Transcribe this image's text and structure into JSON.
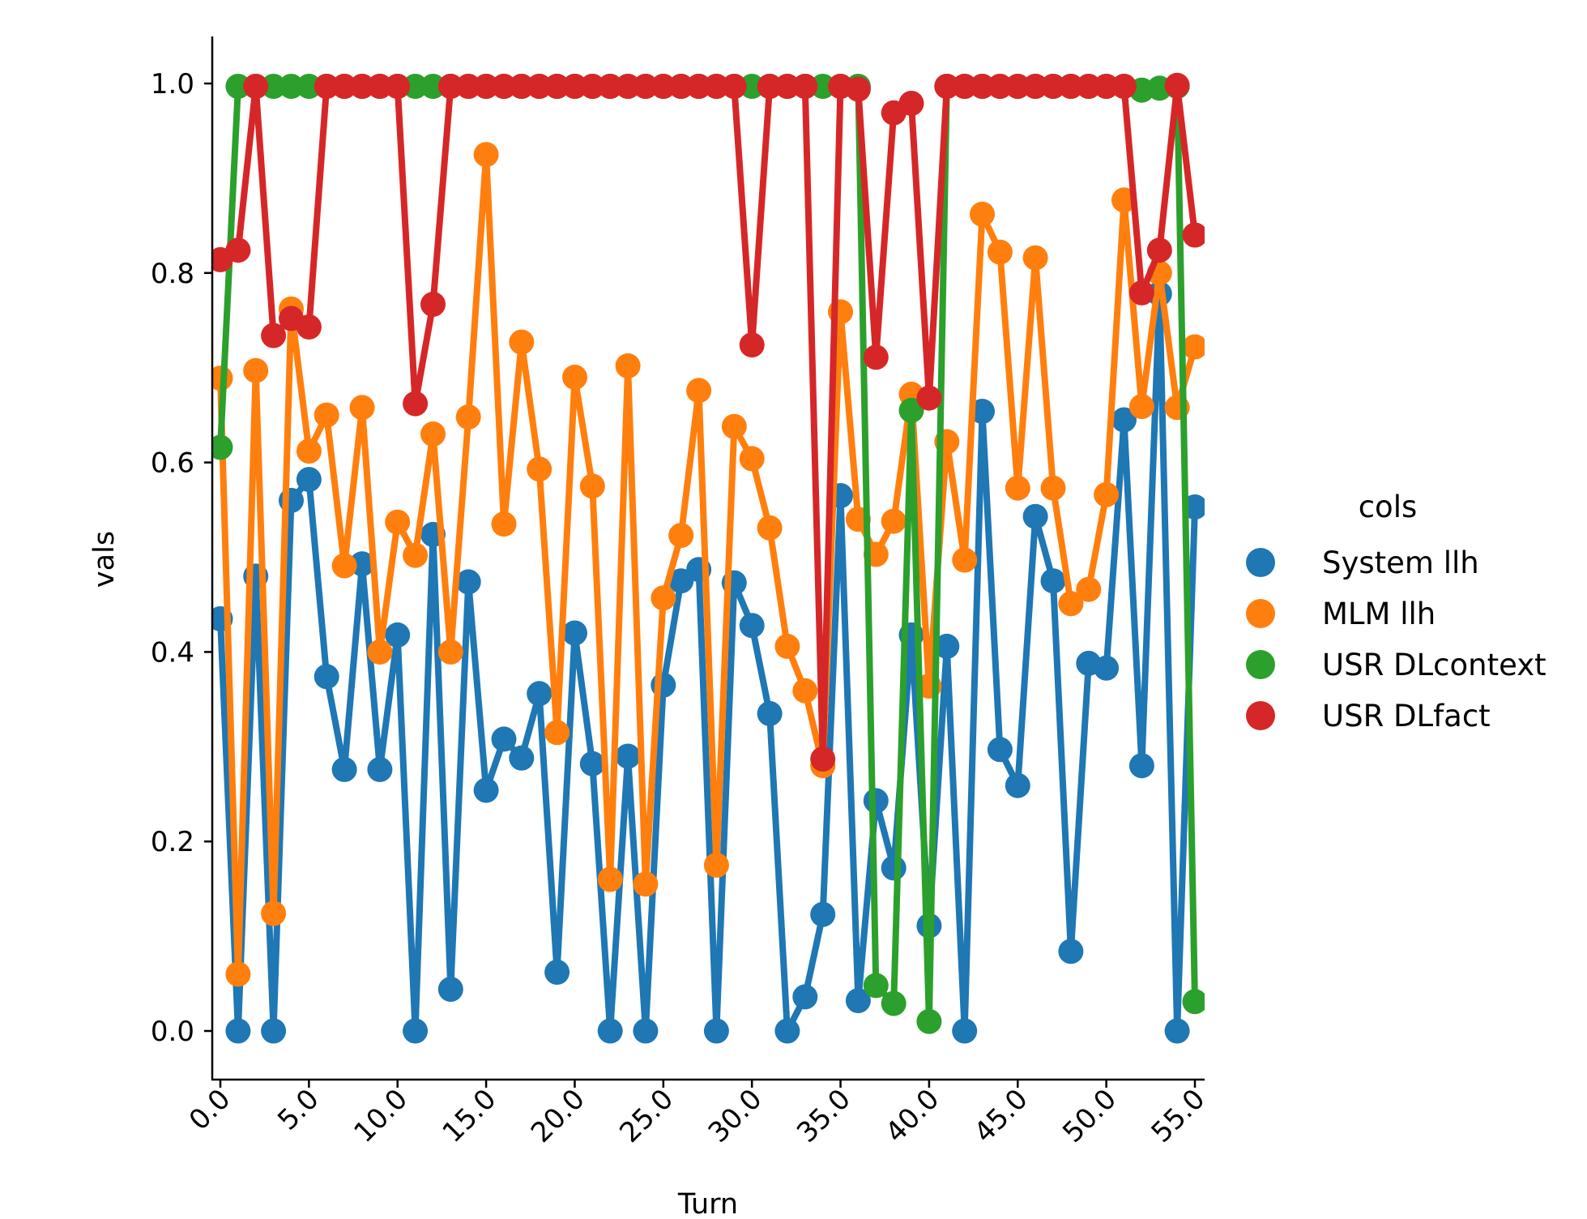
{
  "chart_data": {
    "type": "line",
    "xlabel": "Turn",
    "ylabel": "vals",
    "xlim": [
      -0.5,
      55.3
    ],
    "ylim": [
      -0.05,
      1.05
    ],
    "x_ticks": [
      0,
      5,
      10,
      15,
      20,
      25,
      30,
      35,
      40,
      45,
      50,
      55
    ],
    "x_tick_labels": [
      "0.0",
      "5.0",
      "10.0",
      "15.0",
      "20.0",
      "25.0",
      "30.0",
      "35.0",
      "40.0",
      "45.0",
      "50.0",
      "55.0"
    ],
    "y_ticks": [
      0.0,
      0.2,
      0.4,
      0.6,
      0.8,
      1.0
    ],
    "y_tick_labels": [
      "0.0",
      "0.2",
      "0.4",
      "0.6",
      "0.8",
      "1.0"
    ],
    "grid": false,
    "legend": {
      "title": "cols",
      "placement": "right"
    },
    "x": [
      0,
      1,
      2,
      3,
      4,
      5,
      6,
      7,
      8,
      9,
      10,
      11,
      12,
      13,
      14,
      15,
      16,
      17,
      18,
      19,
      20,
      21,
      22,
      23,
      24,
      25,
      26,
      27,
      28,
      29,
      30,
      31,
      32,
      33,
      34,
      35,
      36,
      37,
      38,
      39,
      40,
      41,
      42,
      43,
      44,
      45,
      46,
      47,
      48,
      49,
      50,
      51,
      52,
      53,
      54,
      55
    ],
    "series": [
      {
        "name": "System llh",
        "color": "#1f77b4",
        "values": [
          0.435,
          0.0,
          0.48,
          0.0,
          0.56,
          0.582,
          0.374,
          0.276,
          0.493,
          0.276,
          0.418,
          0.0,
          0.524,
          0.044,
          0.474,
          0.254,
          0.308,
          0.288,
          0.356,
          0.062,
          0.42,
          0.282,
          0.0,
          0.29,
          0.0,
          0.365,
          0.475,
          0.487,
          0.0,
          0.473,
          0.428,
          0.335,
          0.0,
          0.036,
          0.123,
          0.565,
          0.032,
          0.243,
          0.172,
          0.418,
          0.111,
          0.406,
          0.0,
          0.654,
          0.297,
          0.259,
          0.543,
          0.475,
          0.084,
          0.388,
          0.383,
          0.645,
          0.28,
          0.778,
          0.0,
          0.553
        ]
      },
      {
        "name": "MLM llh",
        "color": "#ff7f0e",
        "values": [
          0.689,
          0.06,
          0.697,
          0.124,
          0.762,
          0.612,
          0.65,
          0.491,
          0.658,
          0.4,
          0.537,
          0.502,
          0.63,
          0.4,
          0.648,
          0.925,
          0.535,
          0.727,
          0.593,
          0.315,
          0.69,
          0.575,
          0.16,
          0.702,
          0.155,
          0.457,
          0.523,
          0.676,
          0.175,
          0.638,
          0.604,
          0.531,
          0.406,
          0.359,
          0.28,
          0.759,
          0.54,
          0.503,
          0.538,
          0.672,
          0.364,
          0.622,
          0.497,
          0.862,
          0.822,
          0.573,
          0.816,
          0.573,
          0.451,
          0.466,
          0.566,
          0.877,
          0.659,
          0.8,
          0.658,
          0.722
        ]
      },
      {
        "name": "USR DLcontext",
        "color": "#2ca02c",
        "values": [
          0.616,
          0.997,
          0.997,
          0.997,
          0.997,
          0.997,
          0.997,
          0.997,
          0.997,
          0.997,
          0.997,
          0.997,
          0.997,
          0.997,
          0.997,
          0.997,
          0.997,
          0.997,
          0.997,
          0.997,
          0.997,
          0.997,
          0.997,
          0.997,
          0.997,
          0.997,
          0.997,
          0.997,
          0.997,
          0.997,
          0.997,
          0.997,
          0.997,
          0.997,
          0.997,
          0.997,
          0.997,
          0.048,
          0.029,
          0.655,
          0.01,
          0.997,
          0.997,
          0.997,
          0.997,
          0.997,
          0.997,
          0.997,
          0.997,
          0.997,
          0.997,
          0.997,
          0.993,
          0.995,
          0.997,
          0.031
        ]
      },
      {
        "name": "USR DLfact",
        "color": "#d62728",
        "values": [
          0.814,
          0.824,
          0.997,
          0.734,
          0.752,
          0.743,
          0.997,
          0.997,
          0.997,
          0.997,
          0.997,
          0.662,
          0.767,
          0.997,
          0.997,
          0.997,
          0.997,
          0.997,
          0.997,
          0.997,
          0.997,
          0.997,
          0.997,
          0.997,
          0.997,
          0.997,
          0.997,
          0.997,
          0.997,
          0.997,
          0.724,
          0.997,
          0.997,
          0.997,
          0.287,
          0.997,
          0.994,
          0.711,
          0.969,
          0.979,
          0.668,
          0.997,
          0.997,
          0.997,
          0.997,
          0.997,
          0.997,
          0.997,
          0.997,
          0.997,
          0.997,
          0.997,
          0.779,
          0.824,
          0.998,
          0.84
        ]
      }
    ]
  }
}
